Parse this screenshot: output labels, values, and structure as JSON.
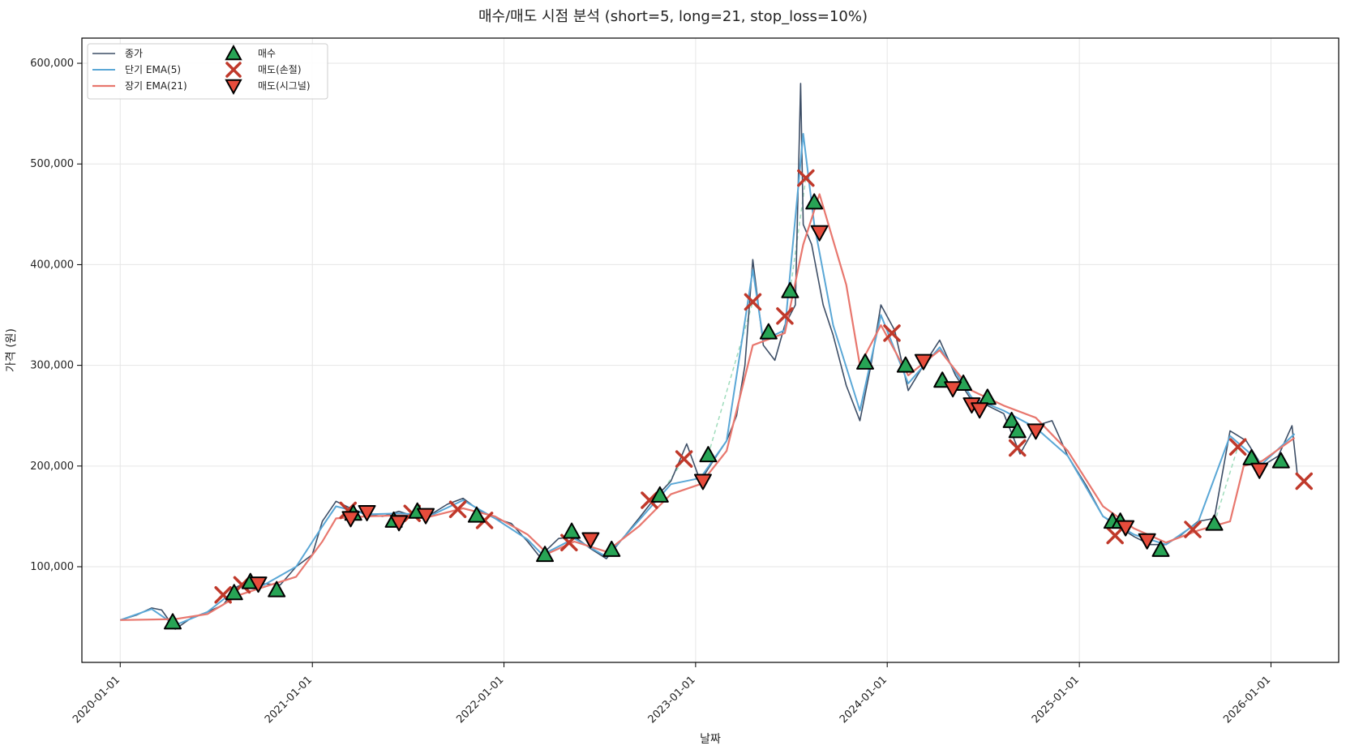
{
  "chart_data": {
    "type": "line",
    "title": "매수/매도 시점 분석 (short=5, long=21, stop_loss=10%)",
    "xlabel": "날짜",
    "ylabel": "가격 (원)",
    "xlim": [
      "2019-10-20",
      "2026-05-10"
    ],
    "ylim": [
      5000,
      625000
    ],
    "x_ticks": [
      "2020-01-01",
      "2021-01-01",
      "2022-01-01",
      "2023-01-01",
      "2024-01-01",
      "2025-01-01",
      "2026-01-01"
    ],
    "y_ticks": [
      100000,
      200000,
      300000,
      400000,
      500000,
      600000
    ],
    "y_tick_labels": [
      "100,000",
      "200,000",
      "300,000",
      "400,000",
      "500,000",
      "600,000"
    ],
    "grid": true,
    "legend_position": "top-left",
    "colors": {
      "close": "#3d4e66",
      "ema_short": "#5aa7d6",
      "ema_long": "#e8776e",
      "buy": "#27a455",
      "sell_stop": "#c0392b",
      "sell_signal": "#e74c3c",
      "trade_line": "#9fdcbc"
    },
    "series": [
      {
        "name": "종가",
        "x": [
          "2020-01-01",
          "2020-02-01",
          "2020-03-01",
          "2020-03-20",
          "2020-04-15",
          "2020-05-15",
          "2020-06-15",
          "2020-07-15",
          "2020-08-10",
          "2020-09-01",
          "2020-10-01",
          "2020-11-01",
          "2020-12-01",
          "2021-01-01",
          "2021-01-20",
          "2021-02-15",
          "2021-03-15",
          "2021-04-15",
          "2021-05-15",
          "2021-06-15",
          "2021-07-15",
          "2021-08-15",
          "2021-09-15",
          "2021-10-15",
          "2021-11-15",
          "2021-12-15",
          "2022-01-15",
          "2022-02-15",
          "2022-03-10",
          "2022-04-15",
          "2022-05-15",
          "2022-06-15",
          "2022-07-15",
          "2022-08-15",
          "2022-09-15",
          "2022-10-15",
          "2022-11-15",
          "2022-12-15",
          "2023-01-10",
          "2023-02-01",
          "2023-03-01",
          "2023-03-20",
          "2023-04-05",
          "2023-04-20",
          "2023-05-10",
          "2023-06-01",
          "2023-06-20",
          "2023-07-10",
          "2023-07-20",
          "2023-07-25",
          "2023-08-10",
          "2023-09-01",
          "2023-09-20",
          "2023-10-15",
          "2023-11-10",
          "2023-12-01",
          "2023-12-20",
          "2024-01-15",
          "2024-02-10",
          "2024-03-10",
          "2024-04-10",
          "2024-05-10",
          "2024-06-10",
          "2024-07-10",
          "2024-08-10",
          "2024-09-10",
          "2024-10-10",
          "2024-11-10",
          "2024-12-10",
          "2025-01-15",
          "2025-02-15",
          "2025-03-15",
          "2025-04-15",
          "2025-05-15",
          "2025-06-15",
          "2025-07-15",
          "2025-08-15",
          "2025-09-15",
          "2025-10-15",
          "2025-11-15",
          "2025-12-15",
          "2026-01-15",
          "2026-02-10",
          "2026-02-20"
        ],
        "values": [
          47000,
          52000,
          59000,
          57000,
          38000,
          49000,
          55000,
          62000,
          80000,
          85000,
          83000,
          82000,
          100000,
          112000,
          145000,
          165000,
          158000,
          152000,
          150000,
          155000,
          150000,
          152000,
          162000,
          168000,
          156000,
          148000,
          143000,
          125000,
          110000,
          128000,
          130000,
          118000,
          108000,
          128000,
          148000,
          168000,
          185000,
          222000,
          185000,
          203000,
          225000,
          250000,
          300000,
          405000,
          320000,
          305000,
          340000,
          360000,
          580000,
          440000,
          420000,
          360000,
          330000,
          280000,
          245000,
          300000,
          360000,
          335000,
          275000,
          300000,
          325000,
          290000,
          265000,
          260000,
          252000,
          212000,
          240000,
          245000,
          210000,
          180000,
          150000,
          140000,
          130000,
          122000,
          122000,
          132000,
          145000,
          148000,
          235000,
          225000,
          200000,
          210000,
          240000,
          192000
        ]
      },
      {
        "name": "단기 EMA(5)",
        "x": [
          "2020-01-01",
          "2020-03-01",
          "2020-04-15",
          "2020-06-15",
          "2020-08-15",
          "2020-10-01",
          "2020-12-01",
          "2021-01-20",
          "2021-02-15",
          "2021-04-15",
          "2021-06-15",
          "2021-08-15",
          "2021-10-15",
          "2021-12-15",
          "2022-02-15",
          "2022-03-15",
          "2022-05-15",
          "2022-07-15",
          "2022-09-15",
          "2022-11-15",
          "2023-01-10",
          "2023-03-01",
          "2023-04-20",
          "2023-05-10",
          "2023-06-20",
          "2023-07-25",
          "2023-08-15",
          "2023-09-20",
          "2023-11-10",
          "2023-12-20",
          "2024-02-10",
          "2024-04-10",
          "2024-06-10",
          "2024-08-10",
          "2024-10-10",
          "2024-12-10",
          "2025-02-15",
          "2025-04-15",
          "2025-06-15",
          "2025-08-15",
          "2025-10-15",
          "2025-12-15",
          "2026-02-15"
        ],
        "values": [
          47000,
          58000,
          42000,
          55000,
          80000,
          82000,
          100000,
          140000,
          160000,
          152000,
          153000,
          151000,
          166000,
          148000,
          127000,
          112000,
          128000,
          110000,
          146000,
          182000,
          188000,
          225000,
          395000,
          325000,
          335000,
          530000,
          440000,
          340000,
          255000,
          350000,
          282000,
          318000,
          268000,
          255000,
          238000,
          210000,
          150000,
          132000,
          122000,
          144000,
          230000,
          202000,
          232000
        ]
      },
      {
        "name": "장기 EMA(21)",
        "x": [
          "2020-01-01",
          "2020-04-15",
          "2020-06-15",
          "2020-08-15",
          "2020-10-01",
          "2020-12-01",
          "2021-01-20",
          "2021-02-15",
          "2021-04-15",
          "2021-06-15",
          "2021-08-15",
          "2021-10-15",
          "2021-12-15",
          "2022-02-15",
          "2022-03-25",
          "2022-05-15",
          "2022-07-15",
          "2022-09-15",
          "2022-11-15",
          "2023-01-10",
          "2023-03-01",
          "2023-04-20",
          "2023-06-20",
          "2023-07-25",
          "2023-08-25",
          "2023-10-15",
          "2023-11-10",
          "2023-12-20",
          "2024-02-10",
          "2024-04-10",
          "2024-06-10",
          "2024-08-10",
          "2024-10-10",
          "2024-12-10",
          "2025-02-15",
          "2025-04-15",
          "2025-06-15",
          "2025-08-15",
          "2025-10-15",
          "2025-11-10",
          "2025-12-15",
          "2026-02-15"
        ],
        "values": [
          47000,
          48000,
          53000,
          72000,
          80000,
          90000,
          125000,
          148000,
          150000,
          151000,
          150000,
          158000,
          150000,
          132000,
          113000,
          125000,
          115000,
          140000,
          172000,
          182000,
          215000,
          320000,
          332000,
          420000,
          470000,
          380000,
          300000,
          340000,
          290000,
          315000,
          275000,
          260000,
          248000,
          215000,
          160000,
          138000,
          124000,
          136000,
          145000,
          200000,
          205000,
          228000
        ]
      }
    ],
    "markers": {
      "buy": {
        "name": "매수",
        "x": [
          "2020-04-10",
          "2020-08-05",
          "2020-09-05",
          "2020-10-25",
          "2021-03-20",
          "2021-06-05",
          "2021-07-20",
          "2021-11-10",
          "2022-03-20",
          "2022-05-10",
          "2022-07-25",
          "2022-10-25",
          "2023-01-25",
          "2023-05-20",
          "2023-06-30",
          "2023-08-15",
          "2023-11-20",
          "2024-02-05",
          "2024-04-15",
          "2024-05-25",
          "2024-07-10",
          "2024-08-25",
          "2024-09-05",
          "2025-03-05",
          "2025-03-20",
          "2025-06-05",
          "2025-09-15",
          "2025-11-25",
          "2026-01-20"
        ],
        "values": [
          45000,
          74000,
          85000,
          77000,
          153000,
          146000,
          155000,
          151000,
          112000,
          135000,
          117000,
          171000,
          211000,
          333000,
          374000,
          462000,
          303000,
          300000,
          285000,
          282000,
          268000,
          245000,
          235000,
          145000,
          145000,
          117000,
          143000,
          208000,
          205000
        ]
      },
      "sell_stop": {
        "name": "매도(손절)",
        "x": [
          "2020-07-15",
          "2020-08-20",
          "2021-03-10",
          "2021-07-10",
          "2021-10-05",
          "2021-11-25",
          "2022-05-05",
          "2022-10-05",
          "2022-12-10",
          "2023-04-20",
          "2023-06-20",
          "2023-07-30",
          "2024-01-10",
          "2024-09-05",
          "2025-03-10",
          "2025-08-05",
          "2025-10-30",
          "2026-03-05"
        ],
        "values": [
          72000,
          82000,
          156000,
          153000,
          157000,
          146000,
          124000,
          166000,
          207000,
          363000,
          349000,
          486000,
          332000,
          218000,
          131000,
          137000,
          219000,
          185000
        ]
      },
      "sell_signal": {
        "name": "매도(시그널)",
        "x": [
          "2020-09-20",
          "2021-03-15",
          "2021-04-15",
          "2021-06-15",
          "2021-08-05",
          "2022-06-15",
          "2023-01-15",
          "2023-08-25",
          "2024-03-10",
          "2024-05-05",
          "2024-06-10",
          "2024-06-25",
          "2024-10-10",
          "2025-03-30",
          "2025-05-10",
          "2025-12-10"
        ],
        "values": [
          83000,
          148000,
          154000,
          144000,
          151000,
          127000,
          185000,
          432000,
          304000,
          277000,
          261000,
          256000,
          235000,
          139000,
          126000,
          196000
        ]
      }
    },
    "trade_lines": [
      {
        "x": [
          "2022-10-25",
          "2022-12-10"
        ],
        "values": [
          171000,
          207000
        ]
      },
      {
        "x": [
          "2023-01-25",
          "2023-04-20"
        ],
        "values": [
          211000,
          363000
        ]
      },
      {
        "x": [
          "2023-06-30",
          "2023-07-30"
        ],
        "values": [
          374000,
          486000
        ]
      },
      {
        "x": [
          "2025-09-15",
          "2025-10-30"
        ],
        "values": [
          143000,
          219000
        ]
      }
    ]
  }
}
